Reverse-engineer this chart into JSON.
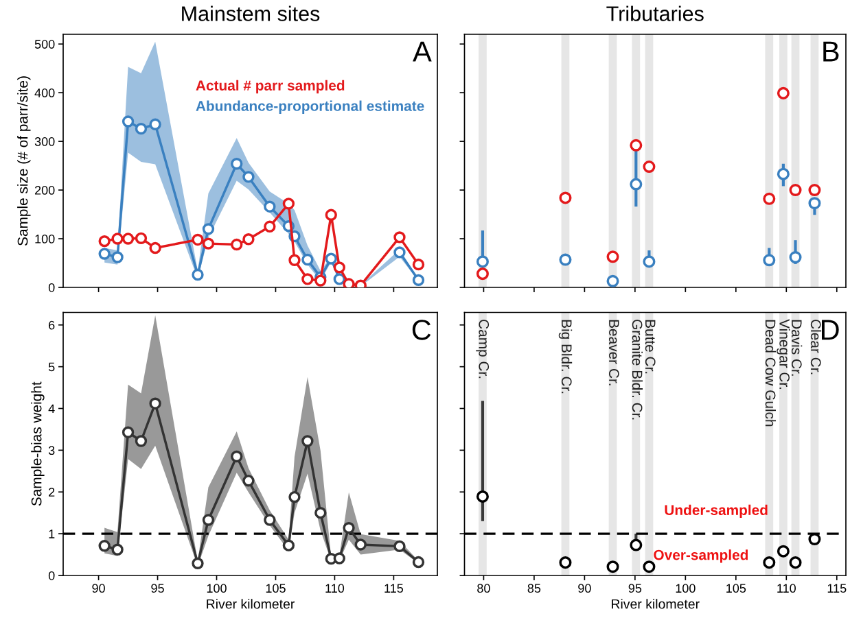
{
  "chart_data": [
    {
      "type": "line",
      "title": "Mainstem sites",
      "ylabel": "Sample size (# of parr/site)",
      "x": [
        90.5,
        91.6,
        92.5,
        93.6,
        94.8,
        98.4,
        99.3,
        101.7,
        102.7,
        104.5,
        106.1,
        106.6,
        107.7,
        108.8,
        109.7,
        110.4,
        111.2,
        112.2,
        115.5,
        117.1
      ],
      "series": [
        {
          "name": "Actual # parr sampled",
          "color": "#e31a1c",
          "values": [
            95,
            100,
            100,
            101,
            81,
            98,
            90,
            88,
            99,
            125,
            172,
            56,
            17,
            14,
            149,
            41,
            7,
            4,
            103,
            47
          ]
        },
        {
          "name": "Abundance-proportional estimate",
          "color": "#3a80c0",
          "values": [
            69,
            62,
            341,
            326,
            335,
            26,
            120,
            254,
            227,
            166,
            126,
            105,
            57,
            21,
            59,
            17,
            null,
            null,
            72,
            15
          ],
          "lower": [
            51,
            47,
            277,
            258,
            253,
            18,
            102,
            219,
            201,
            154,
            110,
            94,
            47,
            13,
            52,
            13,
            6,
            2,
            63,
            13
          ],
          "upper": [
            81,
            76,
            453,
            440,
            505,
            34,
            193,
            307,
            256,
            197,
            172,
            159,
            86,
            34,
            63,
            21,
            10,
            5,
            78,
            17
          ]
        }
      ],
      "xlim": [
        87.0,
        118.7
      ],
      "xticks": [
        90,
        95,
        100,
        105,
        110,
        115
      ],
      "ylim": [
        0,
        520
      ],
      "yticks": [
        0,
        100,
        200,
        300,
        400,
        500
      ],
      "tick_labels": "y",
      "marker": "circle",
      "line_style": "solid",
      "legend": "top right",
      "grid": false,
      "annotations": [
        "A"
      ]
    },
    {
      "type": "scatter",
      "title": "Tributaries",
      "x": [
        79.9,
        88.1,
        92.8,
        95.1,
        96.4,
        108.3,
        109.7,
        110.9,
        112.8
      ],
      "series": [
        {
          "color": "#e31a1c",
          "values": [
            28,
            184,
            63,
            292,
            248,
            182,
            399,
            200,
            200
          ]
        },
        {
          "color": "#3a80c0",
          "values": [
            53,
            57,
            13,
            212,
            53,
            56,
            233,
            62,
            173
          ],
          "errors": [
            [
              45,
              117
            ],
            null,
            null,
            [
              166,
              282
            ],
            [
              50,
              76
            ],
            [
              52,
              81
            ],
            [
              208,
              254
            ],
            [
              48,
              97
            ],
            [
              149,
              180
            ]
          ]
        }
      ],
      "bands": [
        {
          "axis": "x",
          "from": 79.5,
          "to": 80.3,
          "color": "#e6e6e6"
        },
        {
          "axis": "x",
          "from": 87.7,
          "to": 88.5,
          "color": "#e6e6e6"
        },
        {
          "axis": "x",
          "from": 92.4,
          "to": 93.2,
          "color": "#e6e6e6"
        },
        {
          "axis": "x",
          "from": 94.7,
          "to": 95.5,
          "color": "#e6e6e6"
        },
        {
          "axis": "x",
          "from": 96.0,
          "to": 96.8,
          "color": "#e6e6e6"
        },
        {
          "axis": "x",
          "from": 107.9,
          "to": 108.7,
          "color": "#e6e6e6"
        },
        {
          "axis": "x",
          "from": 109.3,
          "to": 110.1,
          "color": "#e6e6e6"
        },
        {
          "axis": "x",
          "from": 110.5,
          "to": 111.3,
          "color": "#e6e6e6"
        },
        {
          "axis": "x",
          "from": 112.4,
          "to": 113.2,
          "color": "#e6e6e6"
        }
      ],
      "xlim": [
        78.1,
        115.9
      ],
      "xticks": [
        80,
        85,
        90,
        95,
        100,
        105,
        110,
        115
      ],
      "ylim": [
        0,
        520
      ],
      "yticks": [
        0,
        100,
        200,
        300,
        400,
        500
      ],
      "tick_labels": false,
      "marker": "circle",
      "grid": false,
      "annotations": [
        "B"
      ]
    },
    {
      "type": "line",
      "xlabel": "River kilometer",
      "ylabel": "Sample-bias weight",
      "x": [
        90.5,
        91.6,
        92.5,
        93.6,
        94.8,
        98.4,
        99.3,
        101.7,
        102.7,
        104.5,
        106.1,
        106.6,
        107.7,
        108.8,
        109.7,
        110.4,
        111.2,
        112.2,
        115.5,
        117.1
      ],
      "series": [
        {
          "color": "#333333",
          "values": [
            0.71,
            0.62,
            3.43,
            3.22,
            4.12,
            0.29,
            1.33,
            2.85,
            2.27,
            1.33,
            0.72,
            1.88,
            3.22,
            1.5,
            0.4,
            0.41,
            1.14,
            0.74,
            0.7,
            0.32
          ],
          "lower": [
            0.53,
            0.47,
            2.79,
            2.55,
            3.11,
            0.22,
            0.95,
            2.46,
            1.99,
            1.2,
            0.59,
            1.5,
            2.44,
            1.08,
            0.35,
            0.35,
            0.86,
            0.5,
            0.62,
            0.29
          ],
          "upper": [
            1.14,
            1.04,
            4.57,
            4.36,
            6.23,
            0.35,
            2.11,
            3.45,
            2.57,
            1.56,
            0.86,
            2.84,
            4.75,
            2.99,
            0.44,
            0.47,
            1.99,
            0.99,
            0.83,
            0.35
          ]
        }
      ],
      "ref_lines": [
        {
          "axis": "y",
          "value": 1,
          "color": "#000000",
          "line_style": "dashed"
        }
      ],
      "xlim": [
        87.0,
        118.7
      ],
      "xticks": [
        90,
        95,
        100,
        105,
        110,
        115
      ],
      "ylim": [
        0,
        6.3
      ],
      "yticks": [
        0,
        1,
        2,
        3,
        4,
        5,
        6
      ],
      "marker": "circle",
      "line_style": "solid",
      "grid": false,
      "annotations": [
        "C"
      ]
    },
    {
      "type": "scatter",
      "xlabel": "River kilometer",
      "x": [
        79.9,
        88.1,
        92.8,
        95.1,
        96.4,
        108.3,
        109.7,
        110.9,
        112.8
      ],
      "series": [
        {
          "color": "#000000",
          "values": [
            1.89,
            0.31,
            0.21,
            0.73,
            0.21,
            0.31,
            0.58,
            0.31,
            0.87
          ],
          "errors": [
            [
              1.3,
              4.18
            ],
            null,
            null,
            [
              0.73,
              1.0
            ],
            null,
            null,
            null,
            null,
            null
          ]
        }
      ],
      "bands": [
        {
          "axis": "x",
          "from": 79.5,
          "to": 80.3,
          "color": "#e6e6e6",
          "label": "Camp Cr."
        },
        {
          "axis": "x",
          "from": 87.7,
          "to": 88.5,
          "color": "#e6e6e6",
          "label": "Big Bldr. Cr."
        },
        {
          "axis": "x",
          "from": 92.4,
          "to": 93.2,
          "color": "#e6e6e6",
          "label": "Beaver Cr."
        },
        {
          "axis": "x",
          "from": 94.7,
          "to": 95.5,
          "color": "#e6e6e6",
          "label": "Granite Bldr. Cr."
        },
        {
          "axis": "x",
          "from": 96.0,
          "to": 96.8,
          "color": "#e6e6e6",
          "label": "Butte Cr."
        },
        {
          "axis": "x",
          "from": 107.9,
          "to": 108.7,
          "color": "#e6e6e6",
          "label": "Dead Cow Gulch"
        },
        {
          "axis": "x",
          "from": 109.3,
          "to": 110.1,
          "color": "#e6e6e6",
          "label": "Vinegar Cr."
        },
        {
          "axis": "x",
          "from": 110.5,
          "to": 111.3,
          "color": "#e6e6e6",
          "label": "Davis Cr."
        },
        {
          "axis": "x",
          "from": 112.4,
          "to": 113.2,
          "color": "#e6e6e6",
          "label": "Clear Cr."
        }
      ],
      "ref_lines": [
        {
          "axis": "y",
          "value": 1,
          "color": "#000000",
          "line_style": "dashed"
        }
      ],
      "xlim": [
        78.1,
        115.9
      ],
      "xticks": [
        80,
        85,
        90,
        95,
        100,
        105,
        110,
        115
      ],
      "ylim": [
        0,
        6.3
      ],
      "yticks": [
        0,
        1,
        2,
        3,
        4,
        5,
        6
      ],
      "tick_labels": "x",
      "marker": "circle",
      "grid": false,
      "annotations": [
        "D",
        "Under-sampled",
        "Over-sampled"
      ]
    }
  ]
}
